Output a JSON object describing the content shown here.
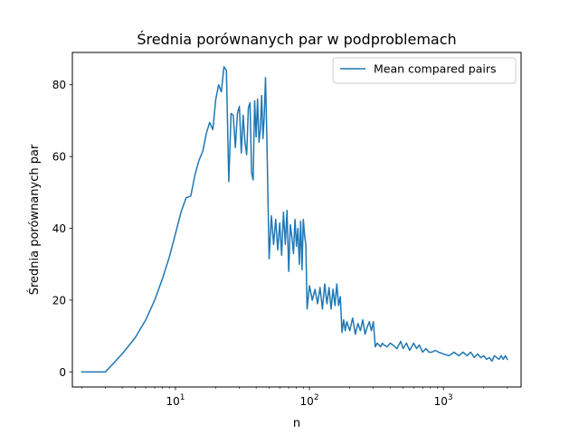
{
  "chart_data": {
    "type": "line",
    "title": "Średnia porównanych par w podproblemach",
    "xlabel": "n",
    "ylabel": "Średnia porównanych par",
    "xscale": "log",
    "xlim": [
      1.7,
      3800
    ],
    "ylim": [
      -4.2,
      89
    ],
    "x_ticks": [
      {
        "value": 10,
        "base": "10",
        "exp": "1"
      },
      {
        "value": 100,
        "base": "10",
        "exp": "2"
      },
      {
        "value": 1000,
        "base": "10",
        "exp": "3"
      }
    ],
    "y_ticks": [
      0,
      20,
      40,
      60,
      80
    ],
    "legend": {
      "position": "top-right",
      "entries": [
        "Mean compared pairs"
      ]
    },
    "grid": false,
    "series": [
      {
        "name": "Mean compared pairs",
        "color": "#1f77b4",
        "x": [
          2,
          3,
          4,
          5,
          6,
          7,
          8,
          9,
          10,
          11,
          12,
          13,
          14,
          15,
          16,
          17,
          18,
          19,
          20,
          21,
          22,
          23,
          24,
          25,
          26,
          27,
          28,
          29,
          30,
          31,
          32,
          33,
          34,
          35,
          36,
          37,
          38,
          39,
          40,
          41,
          42,
          43,
          44,
          45,
          46,
          47,
          48,
          50,
          52,
          54,
          56,
          58,
          60,
          62,
          64,
          66,
          68,
          70,
          72,
          74,
          76,
          78,
          80,
          82,
          84,
          86,
          88,
          90,
          92,
          94,
          96,
          100,
          105,
          110,
          115,
          120,
          125,
          130,
          135,
          140,
          145,
          150,
          155,
          160,
          165,
          170,
          175,
          180,
          185,
          190,
          200,
          210,
          220,
          230,
          240,
          250,
          260,
          270,
          280,
          290,
          300,
          310,
          320,
          330,
          340,
          350,
          360,
          380,
          400,
          420,
          450,
          480,
          500,
          530,
          560,
          600,
          630,
          660,
          700,
          740,
          780,
          820,
          870,
          920,
          1000,
          1100,
          1200,
          1300,
          1400,
          1500,
          1600,
          1700,
          1800,
          1900,
          2000,
          2100,
          2200,
          2300,
          2400,
          2500,
          2600,
          2700,
          2800,
          2900,
          3000
        ],
        "y": [
          0,
          0,
          5,
          9.5,
          14.5,
          20,
          26,
          32,
          38.5,
          44.5,
          48.5,
          49,
          55,
          59,
          61.5,
          66.5,
          69.5,
          67.5,
          76,
          80,
          78,
          85,
          84,
          53,
          72,
          71.5,
          62.5,
          72,
          74,
          61,
          71.5,
          64,
          60.5,
          73.5,
          75,
          55.5,
          53.5,
          75.5,
          65.5,
          76,
          64,
          67.5,
          77,
          65,
          71.5,
          82,
          66.5,
          31.5,
          43.5,
          35.5,
          42.5,
          34,
          41.5,
          32.5,
          44.5,
          35.5,
          45,
          28,
          41,
          37.5,
          33,
          42.5,
          35,
          40,
          30,
          42,
          28.5,
          42.5,
          38,
          35.5,
          17.5,
          24,
          20,
          23,
          19,
          23.5,
          17.5,
          24.5,
          19,
          23.5,
          17.5,
          23,
          18.5,
          24.5,
          18.5,
          21,
          11,
          14.5,
          11.5,
          14,
          11.5,
          15,
          10.5,
          13.5,
          11.5,
          14.5,
          10.5,
          12.5,
          14,
          11.5,
          14,
          7,
          8,
          7.5,
          7,
          8,
          7.5,
          7,
          8,
          7.5,
          6.5,
          8.5,
          6.5,
          8,
          6,
          8,
          6.5,
          7.5,
          5.5,
          6.5,
          5.5,
          5.5,
          6,
          5.5,
          5,
          4.5,
          5.5,
          4.5,
          5.5,
          4.5,
          5.5,
          4,
          5,
          4,
          4.5,
          3.5,
          4,
          3,
          4.5,
          4,
          3.5,
          4.5,
          3.5,
          4.5,
          3.5
        ]
      }
    ]
  }
}
